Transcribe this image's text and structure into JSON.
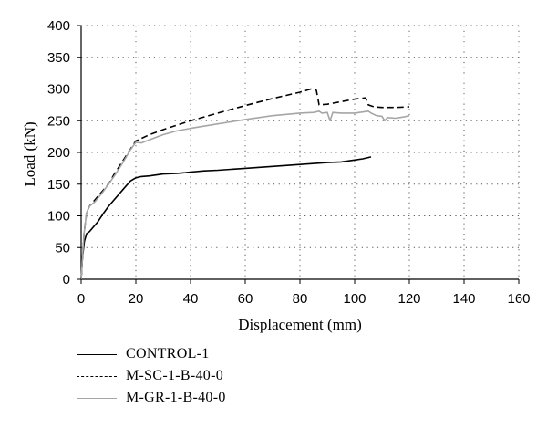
{
  "chart_data": {
    "type": "line",
    "xlabel": "Displacement (mm)",
    "ylabel": "Load (kN)",
    "xlim": [
      0,
      160
    ],
    "ylim": [
      0,
      400
    ],
    "xticks": [
      0,
      20,
      40,
      60,
      80,
      100,
      120,
      140,
      160
    ],
    "yticks": [
      0,
      50,
      100,
      150,
      200,
      250,
      300,
      350,
      400
    ],
    "grid": "dotted",
    "legend_position": "bottom-left",
    "series": [
      {
        "name": "CONTROL-1",
        "color": "#000000",
        "dash": "solid",
        "x": [
          0,
          0.5,
          1.2,
          2,
          3,
          4,
          6,
          8,
          10,
          12,
          15,
          18,
          20,
          22,
          25,
          30,
          35,
          38,
          40,
          45,
          50,
          60,
          70,
          80,
          90,
          95,
          100,
          103,
          106
        ],
        "y": [
          0,
          35,
          60,
          72,
          75,
          80,
          90,
          103,
          115,
          125,
          140,
          155,
          160,
          162,
          163,
          166,
          167,
          168,
          169,
          171,
          172,
          175,
          178,
          181,
          184,
          185,
          188,
          190,
          193
        ]
      },
      {
        "name": "M-SC-1-B-40-0",
        "color": "#000000",
        "dash": "dashed",
        "x": [
          0,
          1,
          2,
          3,
          5,
          8,
          10,
          12,
          15,
          18,
          20,
          25,
          30,
          35,
          40,
          50,
          60,
          70,
          80,
          84,
          86,
          87,
          90,
          95,
          100,
          104,
          105,
          107,
          110,
          115,
          120
        ],
        "y": [
          0,
          70,
          105,
          115,
          125,
          140,
          150,
          165,
          185,
          205,
          218,
          228,
          236,
          243,
          250,
          262,
          274,
          285,
          295,
          300,
          298,
          275,
          276,
          280,
          284,
          286,
          275,
          272,
          271,
          271,
          272
        ]
      },
      {
        "name": "M-GR-1-B-40-0",
        "color": "#a6a6a6",
        "dash": "solid",
        "x": [
          0,
          1,
          2,
          3,
          5,
          8,
          10,
          12,
          15,
          18,
          20,
          22,
          25,
          30,
          35,
          40,
          50,
          60,
          70,
          80,
          85,
          87,
          88,
          90,
          91,
          92,
          95,
          100,
          105,
          106,
          108,
          110,
          111,
          112,
          115,
          118,
          120
        ],
        "y": [
          0,
          70,
          105,
          115,
          122,
          138,
          150,
          162,
          182,
          204,
          216,
          215,
          220,
          228,
          234,
          238,
          245,
          252,
          258,
          262,
          263,
          265,
          262,
          263,
          250,
          263,
          262,
          262,
          265,
          262,
          258,
          257,
          250,
          255,
          254,
          256,
          258
        ]
      }
    ]
  }
}
